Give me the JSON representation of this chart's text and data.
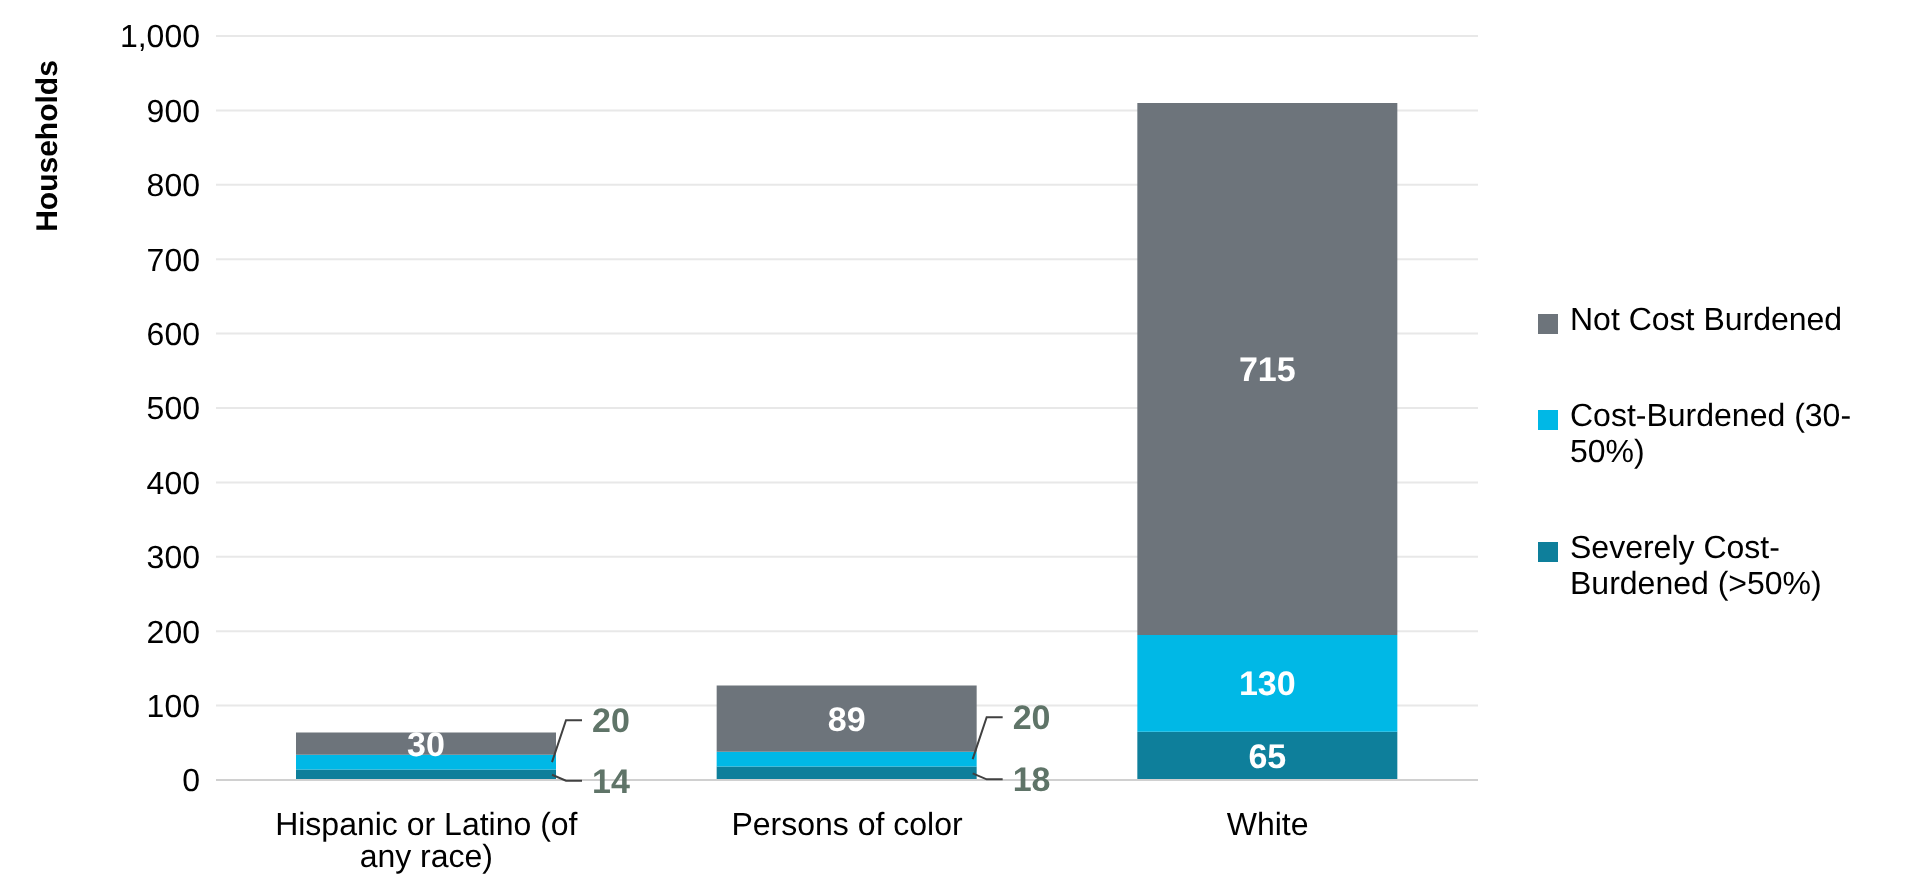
{
  "chart_data": {
    "type": "bar",
    "stacked": true,
    "ylabel": "Households",
    "categories": [
      "Hispanic or Latino (of any race)",
      "Persons of color",
      "White"
    ],
    "series": [
      {
        "name": "Severely Cost-Burdened (>50%)",
        "color": "#0e7f9b",
        "values": [
          14,
          18,
          65
        ]
      },
      {
        "name": "Cost-Burdened (30-50%)",
        "color": "#00b8e6",
        "values": [
          20,
          20,
          130
        ]
      },
      {
        "name": "Not Cost Burdened",
        "color": "#6d747b",
        "values": [
          30,
          89,
          715
        ]
      }
    ],
    "ylim": [
      0,
      1000
    ],
    "yticks": [
      0,
      100,
      200,
      300,
      400,
      500,
      600,
      700,
      800,
      900,
      {
        "value": 1000,
        "label": "1,000"
      }
    ],
    "grid": "y",
    "legend": "right",
    "data_labels": true
  }
}
